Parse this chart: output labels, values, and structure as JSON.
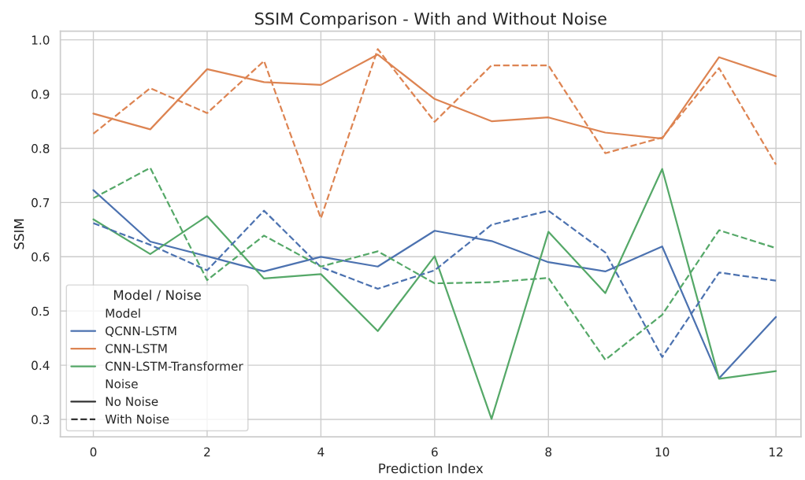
{
  "chart_data": {
    "type": "line",
    "title": "SSIM Comparison - With and Without Noise",
    "xlabel": "Prediction Index",
    "ylabel": "SSIM",
    "x": [
      0,
      1,
      2,
      3,
      4,
      5,
      6,
      7,
      8,
      9,
      10,
      11,
      12
    ],
    "series": [
      {
        "name": "QCNN-LSTM",
        "color": "#4c72b0",
        "line_style": "solid",
        "values": [
          0.723,
          0.628,
          0.601,
          0.573,
          0.6,
          0.582,
          0.648,
          0.629,
          0.59,
          0.573,
          0.619,
          0.376,
          0.489
        ]
      },
      {
        "name": "CNN-LSTM",
        "color": "#dd8452",
        "line_style": "solid",
        "values": [
          0.864,
          0.835,
          0.946,
          0.922,
          0.917,
          0.973,
          0.891,
          0.85,
          0.857,
          0.829,
          0.818,
          0.968,
          0.933
        ]
      },
      {
        "name": "CNN-LSTM-Transformer",
        "color": "#55a868",
        "line_style": "solid",
        "values": [
          0.669,
          0.605,
          0.675,
          0.56,
          0.568,
          0.463,
          0.601,
          0.301,
          0.646,
          0.533,
          0.762,
          0.375,
          0.389
        ]
      },
      {
        "color": "#4c72b0",
        "line_style": "dashed",
        "values": [
          0.662,
          0.622,
          0.575,
          0.685,
          0.581,
          0.541,
          0.575,
          0.659,
          0.685,
          0.608,
          0.415,
          0.571,
          0.556
        ]
      },
      {
        "color": "#dd8452",
        "line_style": "dashed",
        "values": [
          0.827,
          0.911,
          0.865,
          0.961,
          0.671,
          0.983,
          0.849,
          0.953,
          0.953,
          0.791,
          0.82,
          0.948,
          0.77
        ]
      },
      {
        "color": "#55a868",
        "line_style": "dashed",
        "values": [
          0.708,
          0.764,
          0.557,
          0.639,
          0.582,
          0.61,
          0.551,
          0.553,
          0.561,
          0.41,
          0.493,
          0.649,
          0.616
        ]
      }
    ],
    "legend": "lower left",
    "legend_title": "Model / Noise",
    "annotations": [
      "Model",
      "Noise",
      "No Noise",
      "With Noise"
    ],
    "xlim": [
      -0.58,
      12.44
    ],
    "ylim": [
      0.268,
      1.016
    ],
    "xticks": [
      0,
      2,
      4,
      6,
      8,
      10,
      12
    ],
    "yticks": [
      0.3,
      0.4,
      0.5,
      0.6,
      0.7,
      0.8,
      0.9,
      {
        "value": 1.0,
        "label": "1.0"
      }
    ],
    "grid": true,
    "marker": "none"
  }
}
